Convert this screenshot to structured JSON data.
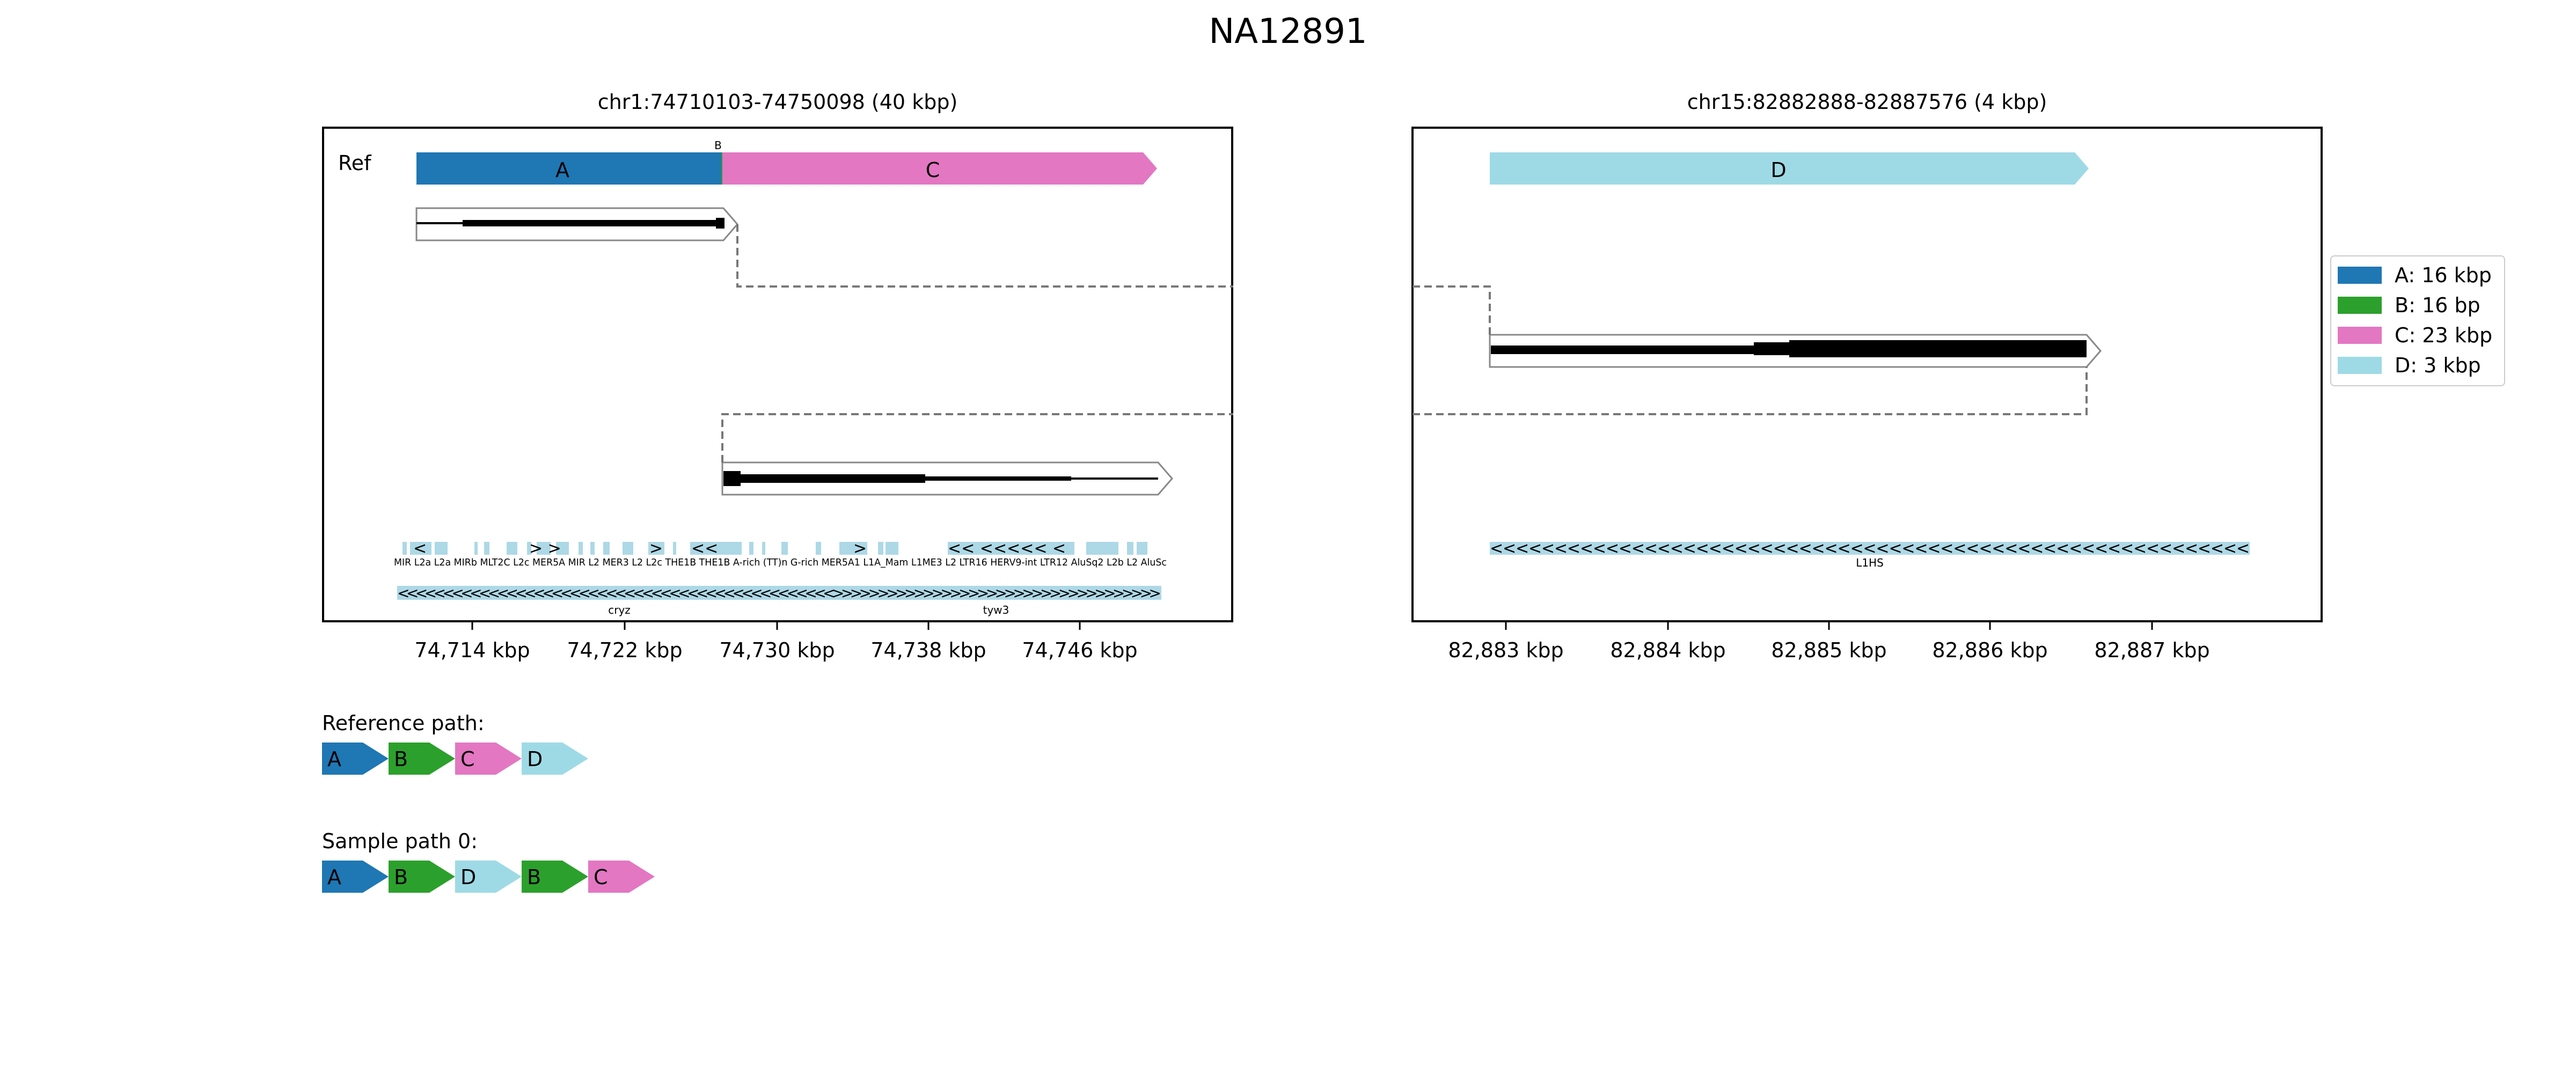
{
  "title": "NA12891",
  "panels": [
    {
      "title": "chr1:74710103-74750098 (40 kbp)",
      "ticks": [
        "74,714 kbp",
        "74,722 kbp",
        "74,730 kbp",
        "74,738 kbp",
        "74,746 kbp"
      ]
    },
    {
      "title": "chr15:82882888-82887576 (4 kbp)",
      "ticks": [
        "82,883 kbp",
        "82,884 kbp",
        "82,885 kbp",
        "82,886 kbp",
        "82,887 kbp"
      ]
    }
  ],
  "ref_label": "Ref",
  "segments": [
    {
      "id": "A",
      "color": "#1f77b4"
    },
    {
      "id": "B",
      "color": "#2ca02c"
    },
    {
      "id": "C",
      "color": "#e377c2"
    },
    {
      "id": "D",
      "color": "#9edae5"
    }
  ],
  "legend": [
    "A: 16 kbp",
    "B: 16 bp",
    "C: 23 kbp",
    "D: 3 kbp"
  ],
  "annotations": {
    "repeats_left": "MIR L2a L2a MIRb MLT2C L2c MER5A MIR L2 MER3 L2 L2c THE1B THE1B A-rich (TT)n G-rich MER5A1 L1A_Mam L1ME3 L2 LTR16 HERV9-int LTR12 AluSq2 L2b L2 AluSc",
    "repeat_right": "L1HS",
    "genes": [
      "cryz",
      "tyw3"
    ]
  },
  "reference_path": {
    "label": "Reference path:",
    "nodes": [
      "A",
      "B",
      "C",
      "D"
    ]
  },
  "sample_path": {
    "label": "Sample path 0:",
    "nodes": [
      "A",
      "B",
      "D",
      "B",
      "C"
    ]
  }
}
